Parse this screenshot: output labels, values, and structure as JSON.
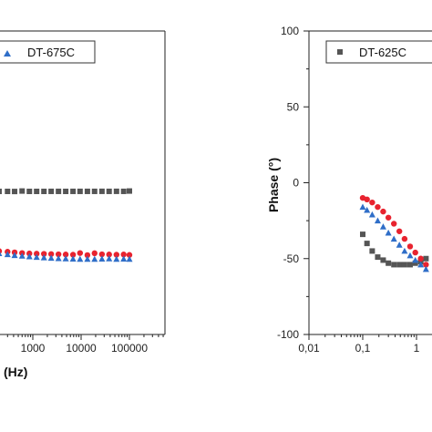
{
  "chart_data": [
    {
      "type": "scatter",
      "panel": "left (cropped)",
      "xlabel_visible": "(Hz)",
      "xscale": "log",
      "x_tick_labels": [
        "1000",
        "10000",
        "100000"
      ],
      "legend": {
        "placement": "top",
        "entries": [
          "DT-675C"
        ]
      },
      "series": [
        {
          "name": "",
          "color": "#555555",
          "marker": "square",
          "x": [
            150,
            200,
            300,
            420,
            600,
            850,
            1200,
            1700,
            2400,
            3400,
            4800,
            6800,
            9500,
            13500,
            19000,
            27000,
            38000,
            54000,
            76000,
            100000
          ],
          "y": [
            0.5,
            0.5,
            0.5,
            0.55,
            0.3,
            0.5,
            0.5,
            0.5,
            0.48,
            0.48,
            0.5,
            0.48,
            0.48,
            0.48,
            0.48,
            0.46,
            0.48,
            0.46,
            0.48,
            0.3
          ]
        },
        {
          "name": "",
          "color": "#e8232f",
          "marker": "circle",
          "x": [
            150,
            200,
            300,
            420,
            600,
            850,
            1200,
            1700,
            2400,
            3400,
            4800,
            6800,
            9500,
            13500,
            19000,
            27000,
            38000,
            54000,
            76000,
            100000
          ],
          "y": [
            5.6,
            5.9,
            6.2,
            6.5,
            6.8,
            7.0,
            7.1,
            7.2,
            7.3,
            7.4,
            7.5,
            7.6,
            6.8,
            7.8,
            6.9,
            7.4,
            7.5,
            7.6,
            7.5,
            7.7
          ]
        },
        {
          "name": "DT-675C",
          "color": "#2f6ec8",
          "marker": "triangle",
          "x": [
            150,
            200,
            300,
            420,
            600,
            850,
            1200,
            1700,
            2400,
            3400,
            4800,
            6800,
            9500,
            13500,
            19000,
            27000,
            38000,
            54000,
            76000,
            100000
          ],
          "y": [
            5.5,
            6.1,
            6.6,
            7.0,
            7.3,
            7.6,
            7.9,
            8.1,
            8.3,
            8.5,
            8.6,
            8.7,
            8.8,
            8.8,
            8.8,
            8.7,
            8.6,
            8.8,
            8.7,
            8.8
          ]
        }
      ]
    },
    {
      "type": "scatter",
      "panel": "right",
      "ylabel": "Phase (°)",
      "xscale": "log",
      "xlim": [
        0.005,
        2
      ],
      "ylim": [
        -100,
        100
      ],
      "y_ticks": [
        -100,
        -50,
        0,
        50,
        100
      ],
      "y_tick_labels": [
        "-100",
        "-50",
        "0",
        "50",
        "100"
      ],
      "x_tick_labels": [
        "0,01",
        "0,1",
        "1"
      ],
      "legend": {
        "placement": "top-right",
        "entries": [
          "DT-625C"
        ]
      },
      "series": [
        {
          "name": "DT-625C",
          "color": "#555555",
          "marker": "square",
          "x": [
            0.1,
            0.12,
            0.15,
            0.19,
            0.24,
            0.3,
            0.38,
            0.48,
            0.6,
            0.76,
            0.95,
            1.2,
            1.5
          ],
          "y": [
            -34,
            -40,
            -45,
            -49,
            -51,
            -53,
            -54,
            -54,
            -54,
            -54,
            -53,
            -52,
            -50
          ]
        },
        {
          "name": "",
          "color": "#e8232f",
          "marker": "circle",
          "x": [
            0.1,
            0.12,
            0.15,
            0.19,
            0.24,
            0.3,
            0.38,
            0.48,
            0.6,
            0.76,
            0.95,
            1.2,
            1.5
          ],
          "y": [
            -10,
            -11,
            -13,
            -16,
            -19,
            -23,
            -27,
            -32,
            -37,
            -42,
            -46,
            -50,
            -54
          ]
        },
        {
          "name": "",
          "color": "#2f6ec8",
          "marker": "triangle",
          "x": [
            0.1,
            0.12,
            0.15,
            0.19,
            0.24,
            0.3,
            0.38,
            0.48,
            0.6,
            0.76,
            0.95,
            1.2,
            1.5
          ],
          "y": [
            -16,
            -18,
            -21,
            -25,
            -29,
            -33,
            -37,
            -41,
            -45,
            -48,
            -51,
            -54,
            -57
          ]
        }
      ]
    }
  ]
}
